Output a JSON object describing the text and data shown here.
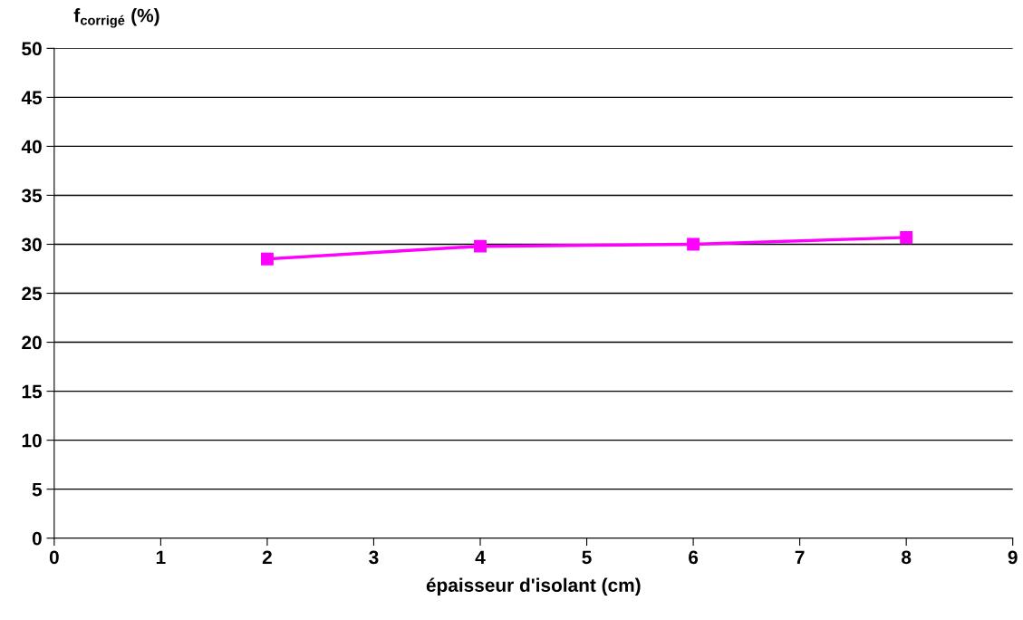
{
  "chart_data": {
    "type": "line",
    "ylabel": "f$_{corrigé}$ (%)",
    "xlabel": "épaisseur d'isolant (cm)",
    "x": [
      2,
      4,
      6,
      8
    ],
    "series": [
      {
        "color": "#ff00ff",
        "values": [
          28.5,
          29.8,
          30.0,
          30.7
        ]
      }
    ],
    "xlim": [
      0,
      9
    ],
    "xticks": [
      0,
      1,
      2,
      3,
      4,
      5,
      6,
      7,
      8,
      9
    ],
    "ylim": [
      0,
      50
    ],
    "yticks": [
      0,
      5,
      10,
      15,
      20,
      25,
      30,
      35,
      40,
      45,
      50
    ],
    "grid": "y",
    "marker": "square",
    "line_style": "solid",
    "legend": false
  }
}
